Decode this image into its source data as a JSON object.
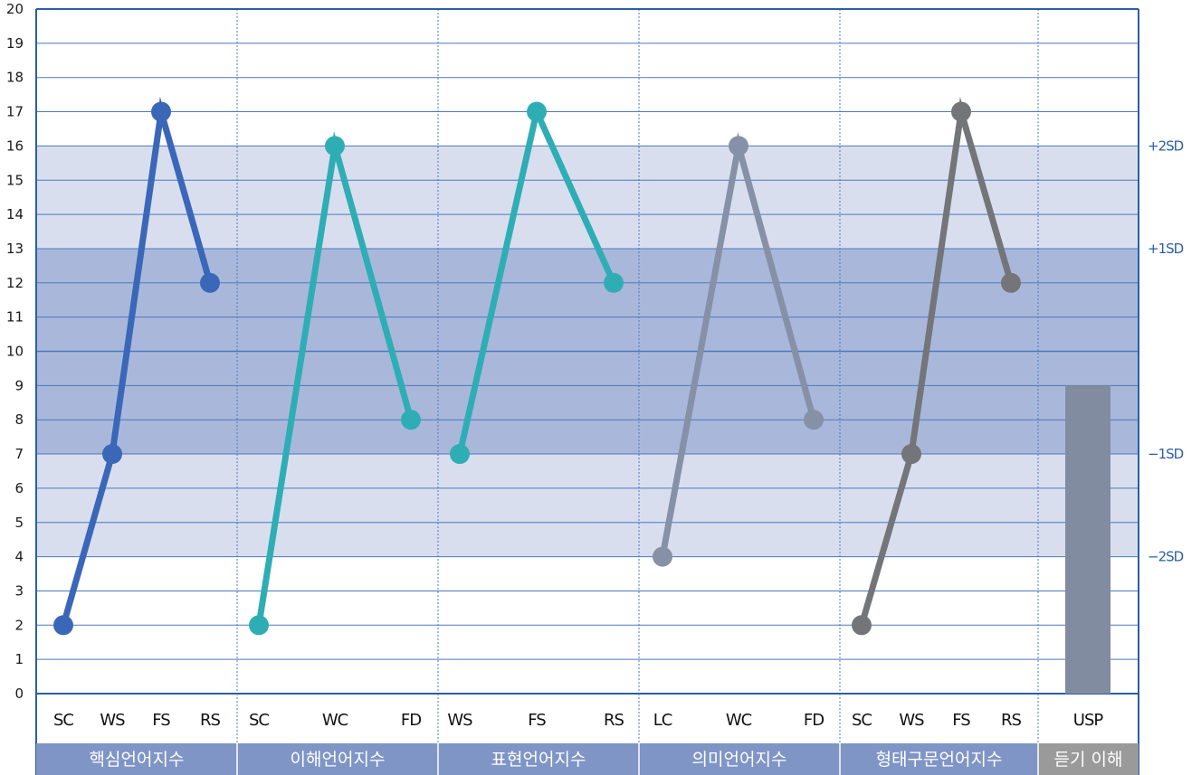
{
  "chart_data": {
    "type": "line",
    "ylim": [
      0,
      20
    ],
    "yticks": [
      "0",
      "1",
      "2",
      "3",
      "4",
      "5",
      "6",
      "7",
      "8",
      "9",
      "10",
      "11",
      "12",
      "13",
      "14",
      "15",
      "16",
      "17",
      "18",
      "19",
      "20"
    ],
    "grid": true,
    "sd_labels": [
      {
        "label": "+2SD",
        "value": 16
      },
      {
        "label": "+1SD",
        "value": 13
      },
      {
        "label": "−1SD",
        "value": 7
      },
      {
        "label": "−2SD",
        "value": 4
      }
    ],
    "groups": [
      {
        "label": "핵심언어지수",
        "color": "#3a67b8",
        "type": "line",
        "categories": [
          "SC",
          "WS",
          "FS",
          "RS"
        ],
        "values": [
          2,
          7,
          17,
          12
        ]
      },
      {
        "label": "이해언어지수",
        "color": "#2eaeb4",
        "type": "line",
        "categories": [
          "SC",
          "WC",
          "FD"
        ],
        "values": [
          2,
          16,
          8
        ]
      },
      {
        "label": "표현언어지수",
        "color": "#2eaeb4",
        "type": "line",
        "categories": [
          "WS",
          "FS",
          "RS"
        ],
        "values": [
          7,
          17,
          12
        ]
      },
      {
        "label": "의미언어지수",
        "color": "#8690a6",
        "type": "line",
        "categories": [
          "LC",
          "WC",
          "FD"
        ],
        "values": [
          4,
          16,
          8
        ]
      },
      {
        "label": "형태구문언어지수",
        "color": "#737578",
        "type": "line",
        "categories": [
          "SC",
          "WS",
          "FS",
          "RS"
        ],
        "values": [
          2,
          7,
          17,
          12
        ]
      },
      {
        "label": "듣기 이해",
        "color": "#828ca0",
        "type": "bar",
        "categories": [
          "USP"
        ],
        "values": [
          9
        ]
      }
    ]
  }
}
